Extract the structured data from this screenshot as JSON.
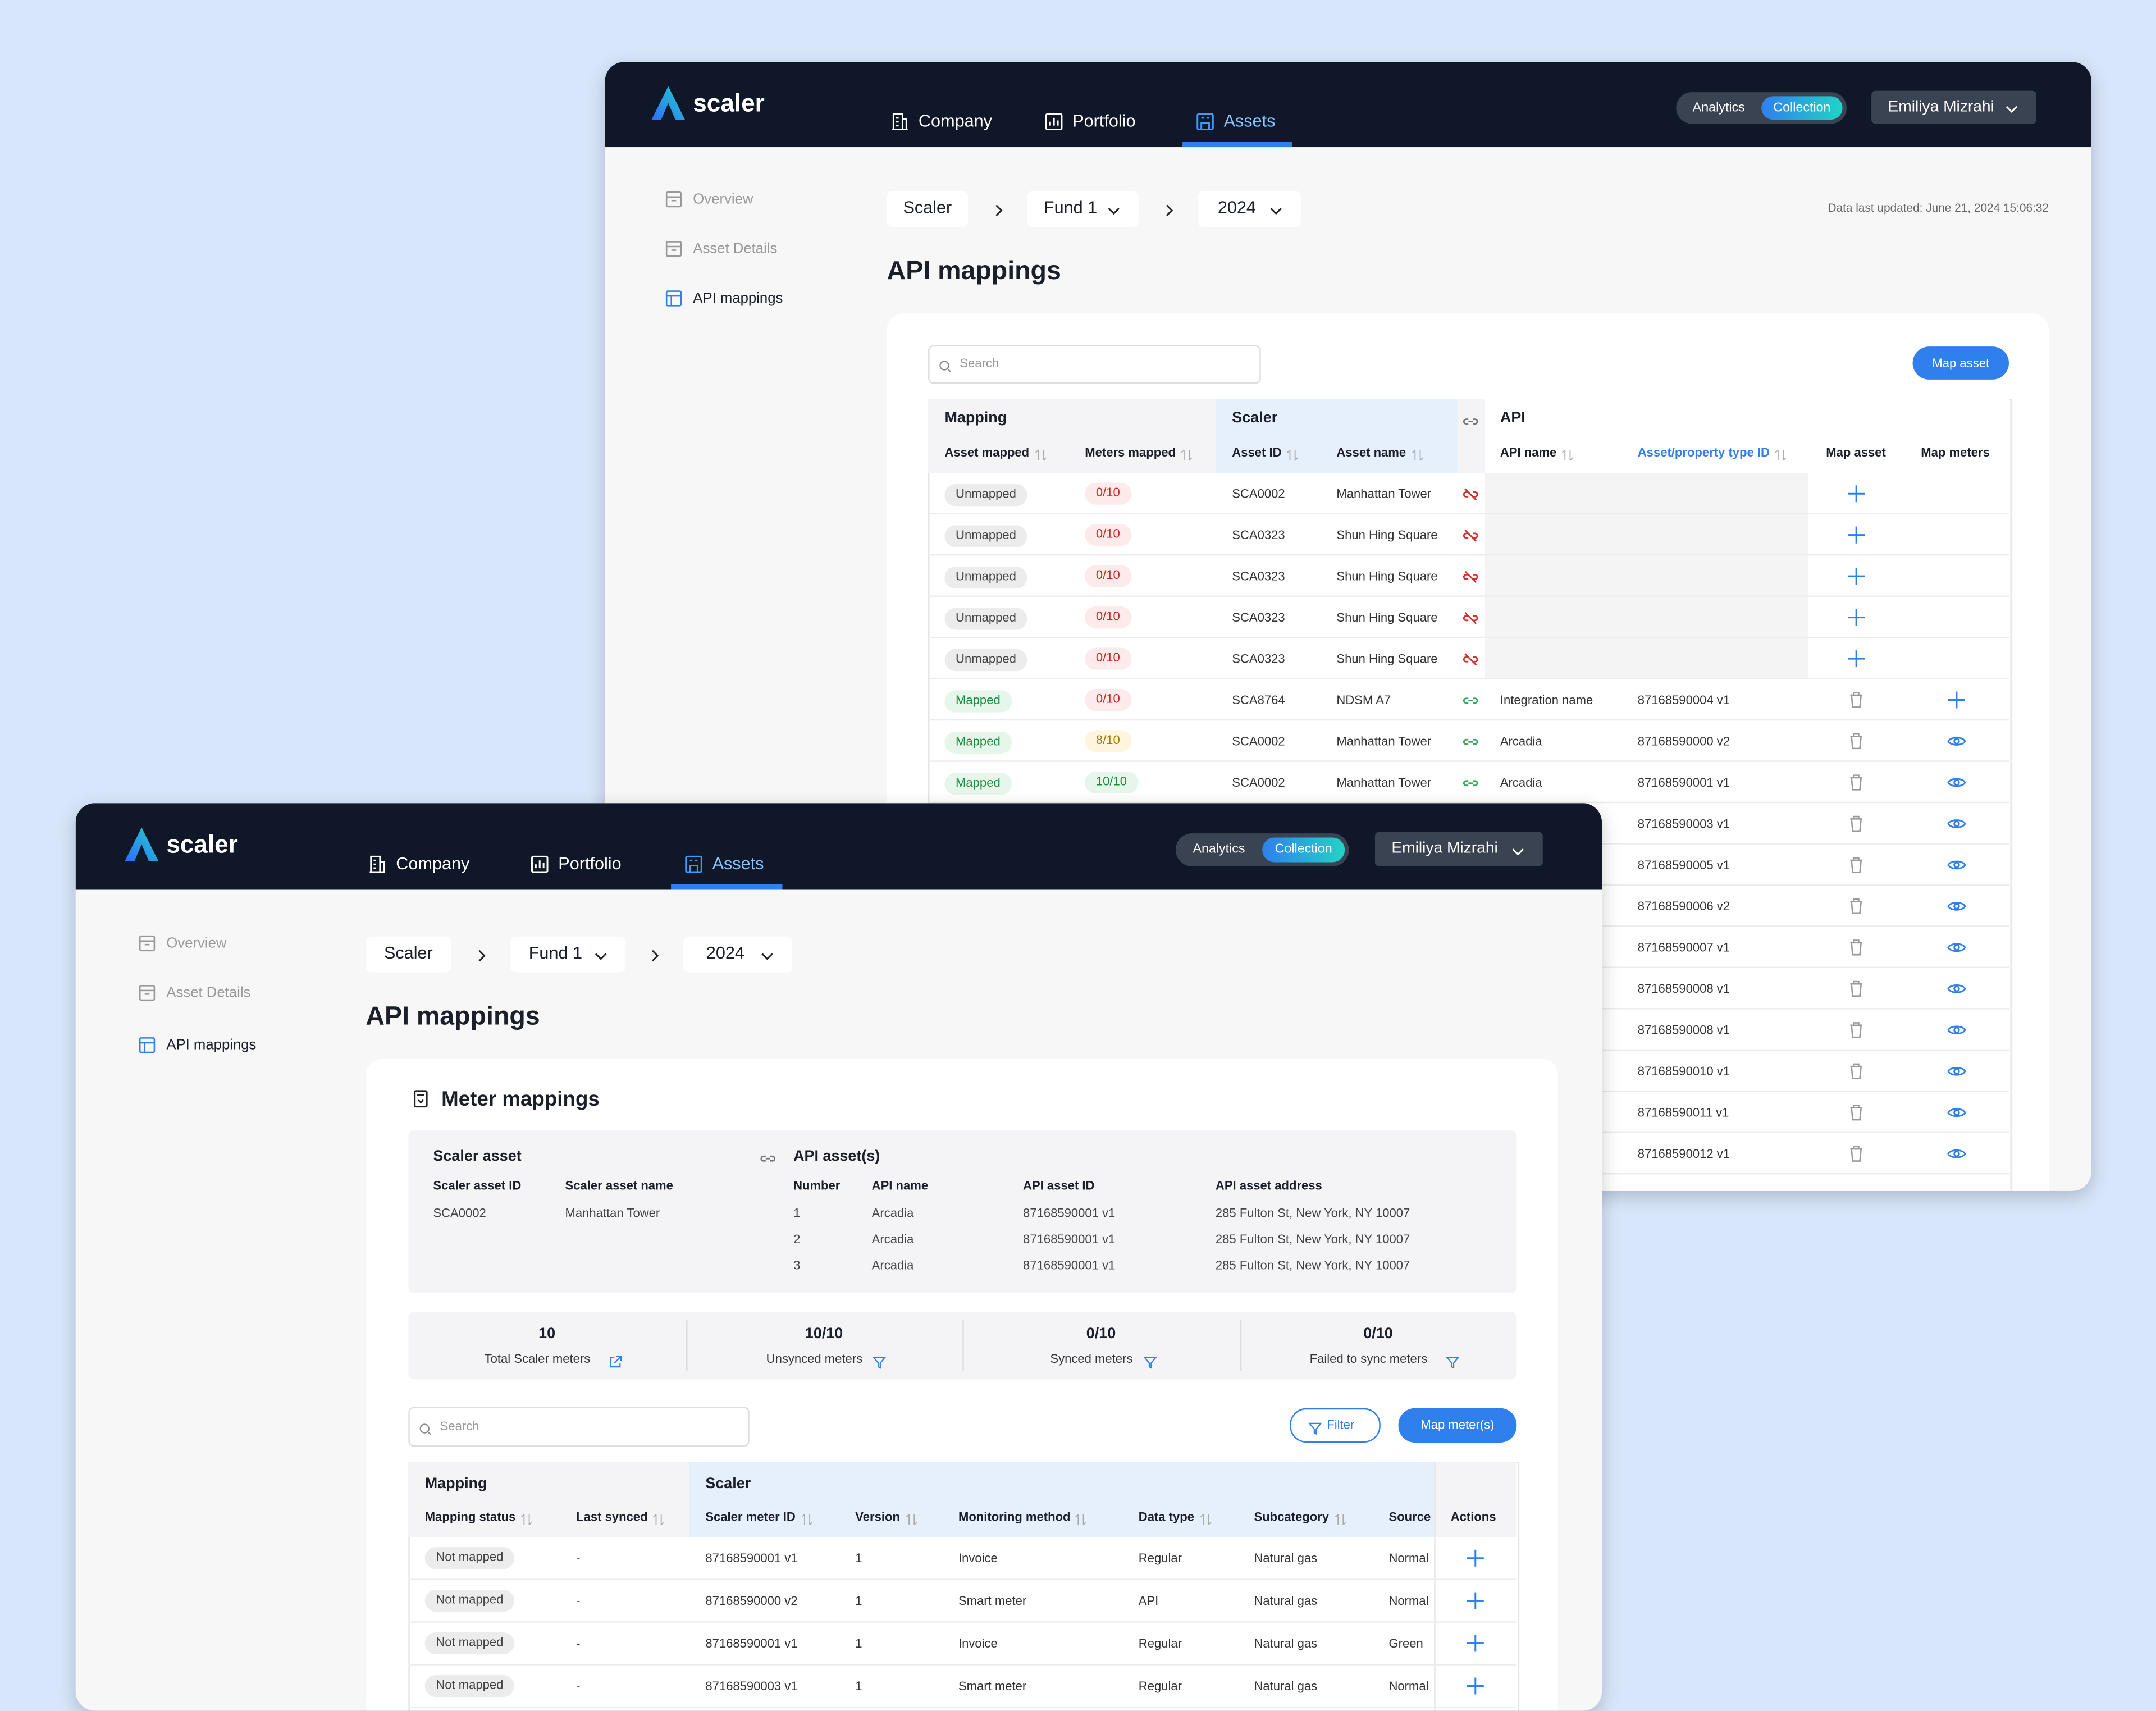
{
  "back": {
    "nav": {
      "logo": "scaler",
      "tabs": [
        "Company",
        "Portfolio",
        "Assets"
      ],
      "toggle": [
        "Analytics",
        "Collection"
      ],
      "user": "Emiliya Mizrahi"
    },
    "sidebar": [
      "Overview",
      "Asset Details",
      "API mappings"
    ],
    "breadcrumb": [
      "Scaler",
      "Fund 1",
      "2024"
    ],
    "updated": "Data last updated: June 21, 2024 15:06:32",
    "title": "API mappings",
    "search": "Search",
    "button": "Map asset",
    "groups": [
      "Mapping",
      "Scaler",
      "API"
    ],
    "columns": [
      "Asset mapped",
      "Meters mapped",
      "Asset ID",
      "Asset name",
      "API name",
      "Asset/property type ID",
      "Map asset",
      "Map meters"
    ],
    "rows": [
      {
        "cells": [
          "Unmapped",
          "0/10",
          "SCA0002",
          "Manhattan Tower",
          null,
          null
        ],
        "map_asset": "add",
        "map_meters": null
      },
      {
        "cells": [
          "Unmapped",
          "0/10",
          "SCA0323",
          "Shun Hing Square",
          null,
          null
        ],
        "map_asset": "add",
        "map_meters": null
      },
      {
        "cells": [
          "Unmapped",
          "0/10",
          "SCA0323",
          "Shun Hing Square",
          null,
          null
        ],
        "map_asset": "add",
        "map_meters": null
      },
      {
        "cells": [
          "Unmapped",
          "0/10",
          "SCA0323",
          "Shun Hing Square",
          null,
          null
        ],
        "map_asset": "add",
        "map_meters": null
      },
      {
        "cells": [
          "Unmapped",
          "0/10",
          "SCA0323",
          "Shun Hing Square",
          null,
          null
        ],
        "map_asset": "add",
        "map_meters": null
      },
      {
        "cells": [
          "Mapped",
          "0/10",
          "SCA8764",
          "NDSM A7",
          "Integration name",
          "87168590004 v1"
        ],
        "map_asset": "delete",
        "map_meters": "add"
      },
      {
        "cells": [
          "Mapped",
          "8/10",
          "SCA0002",
          "Manhattan Tower",
          "Arcadia",
          "87168590000 v2"
        ],
        "map_asset": "delete",
        "map_meters": "view"
      },
      {
        "cells": [
          "Mapped",
          "10/10",
          "SCA0002",
          "Manhattan Tower",
          "Arcadia",
          "87168590001 v1"
        ],
        "map_asset": "delete",
        "map_meters": "view"
      },
      {
        "cells": [
          null,
          null,
          null,
          null,
          null,
          "87168590003 v1"
        ],
        "map_asset": "delete",
        "map_meters": "view"
      },
      {
        "cells": [
          null,
          null,
          null,
          null,
          null,
          "87168590005 v1"
        ],
        "map_asset": "delete",
        "map_meters": "view"
      },
      {
        "cells": [
          null,
          null,
          null,
          null,
          null,
          "87168590006 v2"
        ],
        "map_asset": "delete",
        "map_meters": "view"
      },
      {
        "cells": [
          null,
          null,
          null,
          null,
          null,
          "87168590007 v1"
        ],
        "map_asset": "delete",
        "map_meters": "view"
      },
      {
        "cells": [
          null,
          null,
          null,
          null,
          null,
          "87168590008 v1"
        ],
        "map_asset": "delete",
        "map_meters": "view"
      },
      {
        "cells": [
          null,
          null,
          null,
          null,
          null,
          "87168590008 v1"
        ],
        "map_asset": "delete",
        "map_meters": "view"
      },
      {
        "cells": [
          null,
          null,
          null,
          null,
          null,
          "87168590010 v1"
        ],
        "map_asset": "delete",
        "map_meters": "view"
      },
      {
        "cells": [
          null,
          null,
          null,
          null,
          null,
          "87168590011 v1"
        ],
        "map_asset": "delete",
        "map_meters": "view"
      },
      {
        "cells": [
          null,
          null,
          null,
          null,
          null,
          "87168590012 v1"
        ],
        "map_asset": "delete",
        "map_meters": "view"
      }
    ]
  },
  "front": {
    "nav": {
      "logo": "scaler",
      "tabs": [
        "Company",
        "Portfolio",
        "Assets"
      ],
      "toggle": [
        "Analytics",
        "Collection"
      ],
      "user": "Emiliya Mizrahi"
    },
    "sidebar": [
      "Overview",
      "Asset Details",
      "API mappings"
    ],
    "breadcrumb": [
      "Scaler",
      "Fund 1",
      "2024"
    ],
    "title": "API mappings",
    "card_title": "Meter mappings",
    "scaler_asset": {
      "title": "Scaler asset",
      "columns": [
        "Scaler asset ID",
        "Scaler asset name"
      ],
      "row": [
        "SCA0002",
        "Manhattan Tower"
      ]
    },
    "api_assets": {
      "title": "API asset(s)",
      "columns": [
        "Number",
        "API name",
        "API asset ID",
        "API asset address"
      ],
      "rows": [
        [
          "1",
          "Arcadia",
          "87168590001 v1",
          "285 Fulton St, New York, NY 10007"
        ],
        [
          "2",
          "Arcadia",
          "87168590001 v1",
          "285 Fulton St, New York, NY 10007"
        ],
        [
          "3",
          "Arcadia",
          "87168590001 v1",
          "285 Fulton St, New York, NY 10007"
        ]
      ]
    },
    "stats": [
      {
        "value": "10",
        "label": "Total Scaler meters",
        "icon": "external"
      },
      {
        "value": "10/10",
        "label": "Unsynced meters",
        "icon": "filter"
      },
      {
        "value": "0/10",
        "label": "Synced meters",
        "icon": "filter"
      },
      {
        "value": "0/10",
        "label": "Failed to sync meters",
        "icon": "filter"
      }
    ],
    "search": "Search",
    "filter_button": "Filter",
    "button": "Map meter(s)",
    "groups": [
      "Mapping",
      "Scaler"
    ],
    "columns": [
      "Mapping status",
      "Last synced",
      "Scaler meter ID",
      "Version",
      "Monitoring method",
      "Data type",
      "Subcategory",
      "Source",
      "Actions"
    ],
    "rows": [
      [
        "Not mapped",
        "-",
        "87168590001 v1",
        "1",
        "Invoice",
        "Regular",
        "Natural gas",
        "Normal"
      ],
      [
        "Not mapped",
        "-",
        "87168590000 v2",
        "1",
        "Smart meter",
        "API",
        "Natural gas",
        "Normal"
      ],
      [
        "Not mapped",
        "-",
        "87168590001 v1",
        "1",
        "Invoice",
        "Regular",
        "Natural gas",
        "Green"
      ],
      [
        "Not mapped",
        "-",
        "87168590003 v1",
        "1",
        "Smart meter",
        "Regular",
        "Natural gas",
        "Normal"
      ]
    ]
  }
}
